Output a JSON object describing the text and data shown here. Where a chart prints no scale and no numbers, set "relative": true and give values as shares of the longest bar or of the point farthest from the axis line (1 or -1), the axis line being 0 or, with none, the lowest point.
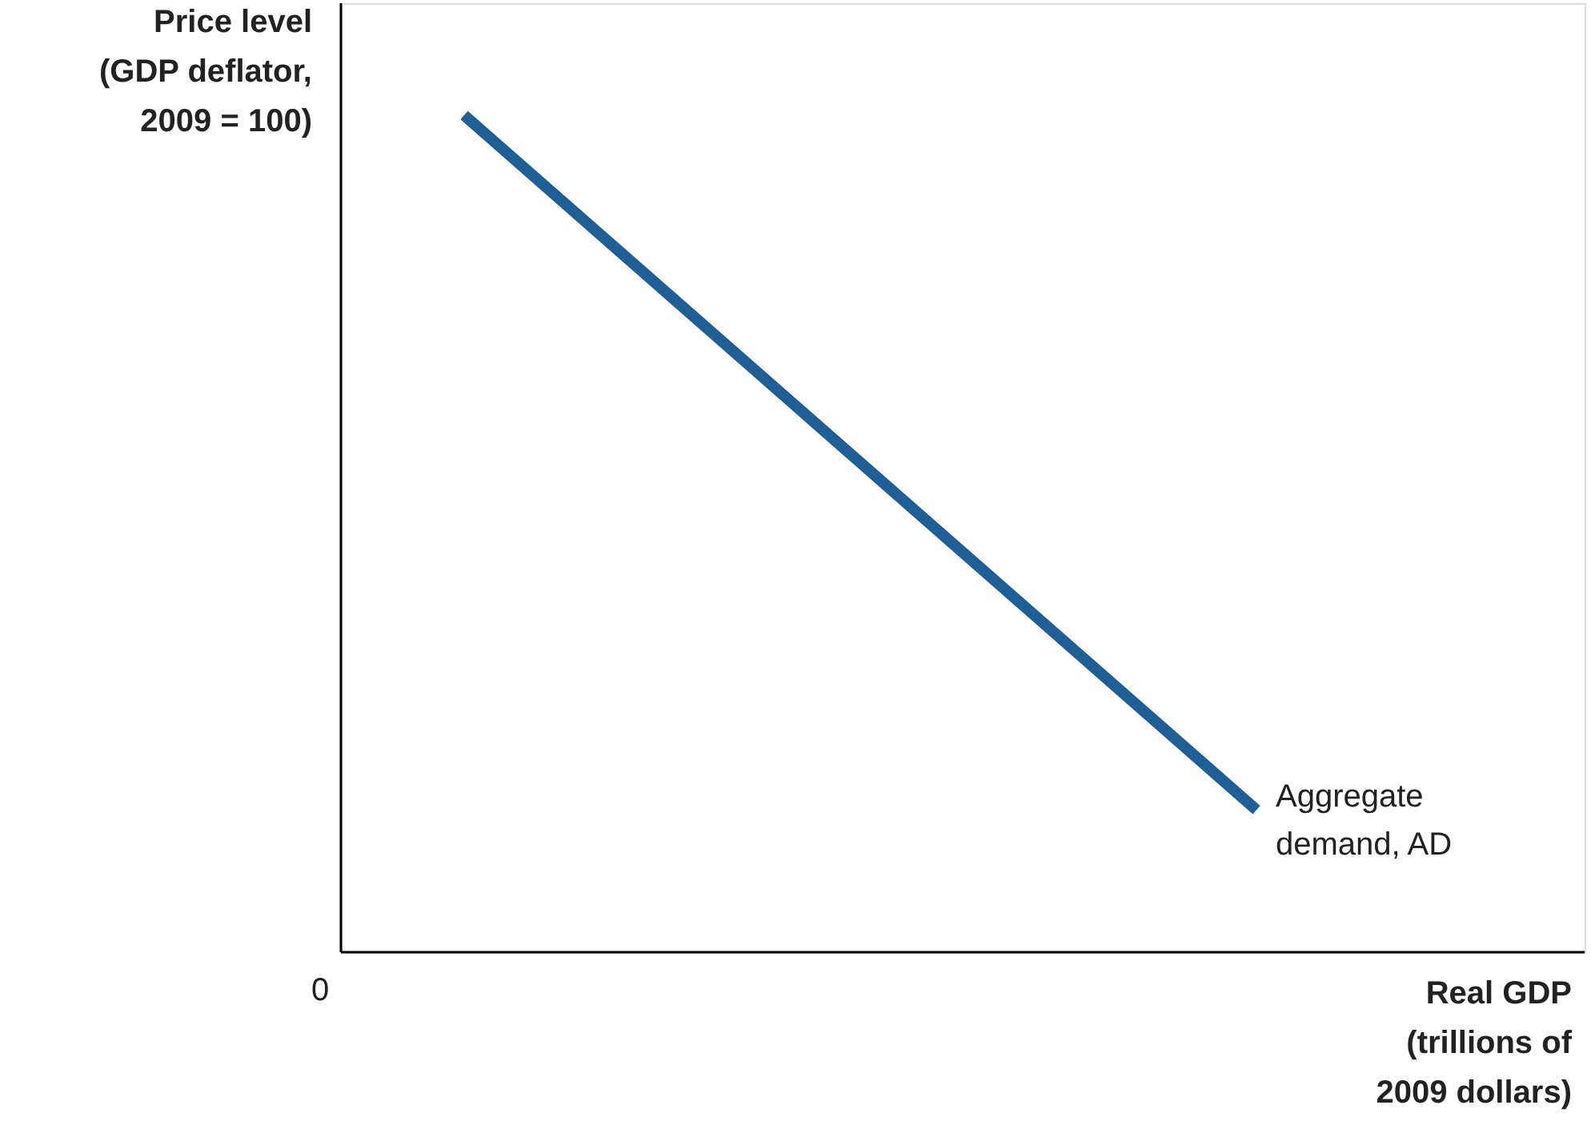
{
  "chart_data": {
    "type": "line",
    "relative": true,
    "ylabel": "Price level (GDP deflator, 2009 = 100)",
    "xlabel": "Real GDP (trillions of 2009 dollars)",
    "categories": [
      null,
      null
    ],
    "series": [
      {
        "name": "Aggregate demand, AD",
        "color": "#1f5f96",
        "values": [
          1,
          0.17
        ]
      }
    ],
    "annotations": [
      "0"
    ],
    "marker": "none",
    "line_style": "solid"
  }
}
